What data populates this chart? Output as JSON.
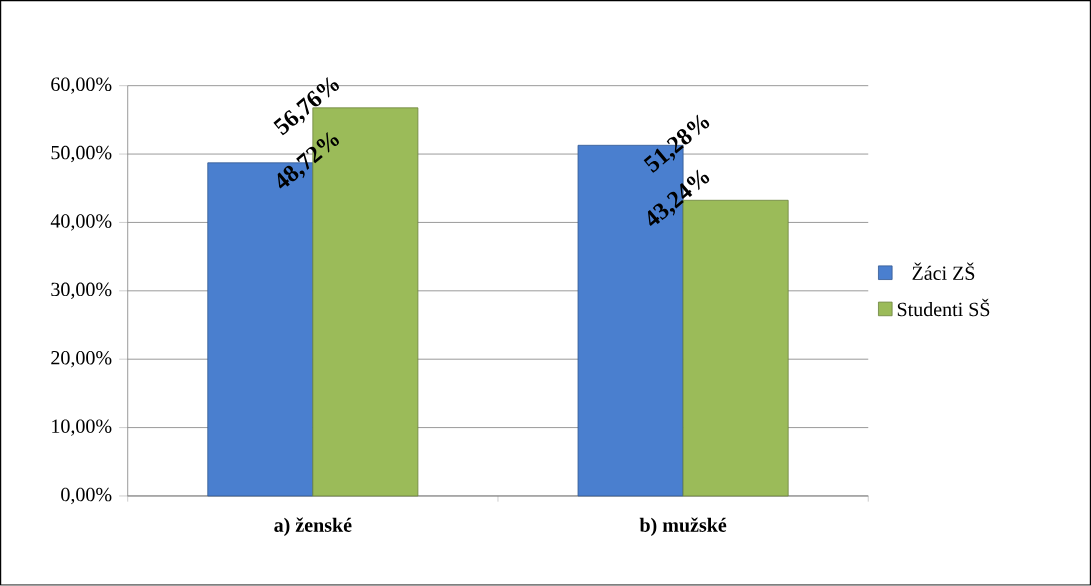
{
  "chart_data": {
    "type": "bar",
    "categories": [
      "a) ženské",
      "b) mužské"
    ],
    "series": [
      {
        "name": "Žáci ZŠ",
        "color": "#4a7fcf",
        "values": [
          48.72,
          51.28
        ],
        "value_labels": [
          "48,72%",
          "51,28%"
        ]
      },
      {
        "name": "Studenti SŠ",
        "color": "#9bbb59",
        "values": [
          56.76,
          43.24
        ],
        "value_labels": [
          "56,76%",
          "43,24%"
        ]
      }
    ],
    "ylim": [
      0,
      60
    ],
    "yticks": [
      {
        "value": 0,
        "label": "0,00%"
      },
      {
        "value": 10,
        "label": "10,00%"
      },
      {
        "value": 20,
        "label": "20,00%"
      },
      {
        "value": 30,
        "label": "30,00%"
      },
      {
        "value": 40,
        "label": "40,00%"
      },
      {
        "value": 50,
        "label": "50,00%"
      },
      {
        "value": 60,
        "label": "60,00%"
      }
    ],
    "grid": "y",
    "legend": "right"
  }
}
